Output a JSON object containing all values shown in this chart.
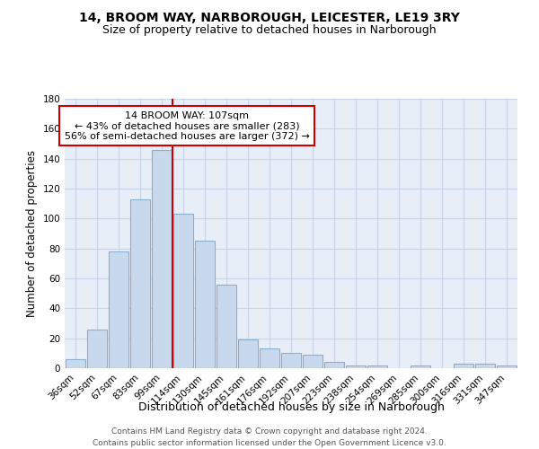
{
  "title1": "14, BROOM WAY, NARBOROUGH, LEICESTER, LE19 3RY",
  "title2": "Size of property relative to detached houses in Narborough",
  "xlabel": "Distribution of detached houses by size in Narborough",
  "ylabel": "Number of detached properties",
  "bar_labels": [
    "36sqm",
    "52sqm",
    "67sqm",
    "83sqm",
    "99sqm",
    "114sqm",
    "130sqm",
    "145sqm",
    "161sqm",
    "176sqm",
    "192sqm",
    "207sqm",
    "223sqm",
    "238sqm",
    "254sqm",
    "269sqm",
    "285sqm",
    "300sqm",
    "316sqm",
    "331sqm",
    "347sqm"
  ],
  "bar_values": [
    6,
    26,
    78,
    113,
    146,
    103,
    85,
    56,
    19,
    13,
    10,
    9,
    4,
    2,
    2,
    0,
    2,
    0,
    3,
    3,
    2
  ],
  "bar_color": "#c9d9ed",
  "bar_edge_color": "#8ab0d0",
  "vline_color": "#cc0000",
  "annotation_line1": "14 BROOM WAY: 107sqm",
  "annotation_line2": "← 43% of detached houses are smaller (283)",
  "annotation_line3": "56% of semi-detached houses are larger (372) →",
  "annotation_box_color": "#ffffff",
  "annotation_box_edge": "#cc0000",
  "ylim": [
    0,
    180
  ],
  "yticks": [
    0,
    20,
    40,
    60,
    80,
    100,
    120,
    140,
    160,
    180
  ],
  "bg_color": "#e8eef8",
  "grid_color": "#c8d4e8",
  "footer1": "Contains HM Land Registry data © Crown copyright and database right 2024.",
  "footer2": "Contains public sector information licensed under the Open Government Licence v3.0.",
  "title1_fontsize": 10,
  "title2_fontsize": 9,
  "ylabel_fontsize": 8.5,
  "xlabel_fontsize": 9,
  "tick_fontsize": 7.5,
  "footer_fontsize": 6.5,
  "annot_fontsize": 8
}
